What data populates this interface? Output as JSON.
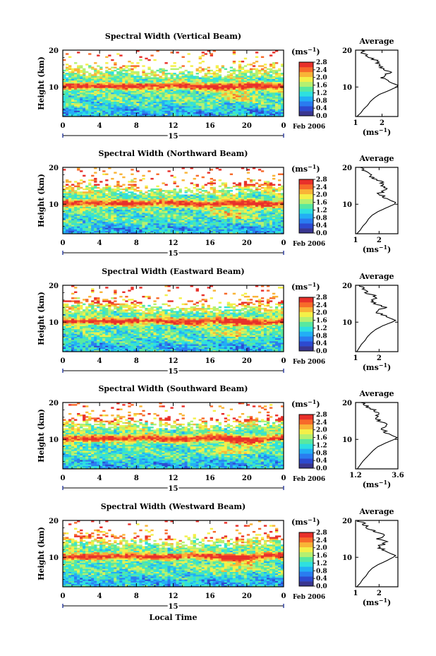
{
  "figure": {
    "x_axis_label": "Local Time",
    "date_day": "15",
    "date_month_year": "Feb 2006",
    "y_axis_label": "Height (km)",
    "colorbar_unit": "(ms",
    "colorbar_unit_sup": "−1",
    "avg_title": "Average",
    "avg_unit": "(ms",
    "avg_unit_sup": "−1",
    "colormap": [
      "#3a3690",
      "#2d4ad0",
      "#2a7cf0",
      "#22aff5",
      "#2ee0e0",
      "#58e8a0",
      "#b6f070",
      "#f4f048",
      "#f9b437",
      "#f76a2a",
      "#e8302a"
    ]
  },
  "chart_data": [
    {
      "type": "heatmap",
      "title": "Spectral Width (Vertical Beam)",
      "x_ticks": [
        "0",
        "4",
        "8",
        "12",
        "16",
        "20",
        "0"
      ],
      "xlim": [
        0,
        24
      ],
      "y_ticks": [
        "10",
        "20"
      ],
      "ylim": [
        2,
        20
      ],
      "colorbar_ticks": [
        "0.0",
        "0.4",
        "0.8",
        "1.2",
        "1.6",
        "2.0",
        "2.4",
        "2.8"
      ],
      "colorbar_range": [
        0,
        2.8
      ],
      "avg_x_ticks": [
        "1",
        "2"
      ],
      "avg_xlim": [
        1.0,
        2.6
      ],
      "avg_profile": [
        [
          2.0,
          1.05
        ],
        [
          3.0,
          1.2
        ],
        [
          4.0,
          1.3
        ],
        [
          5.0,
          1.45
        ],
        [
          6.0,
          1.55
        ],
        [
          7.0,
          1.7
        ],
        [
          8.0,
          1.9
        ],
        [
          9.0,
          2.25
        ],
        [
          10.0,
          2.55
        ],
        [
          10.5,
          2.6
        ],
        [
          11.0,
          2.4
        ],
        [
          12.0,
          2.1
        ],
        [
          13.0,
          2.0
        ],
        [
          14.0,
          2.3
        ],
        [
          15.0,
          2.05
        ],
        [
          16.0,
          1.9
        ],
        [
          17.0,
          1.85
        ],
        [
          18.0,
          1.55
        ],
        [
          19.0,
          1.35
        ],
        [
          20.0,
          1.2
        ]
      ]
    },
    {
      "type": "heatmap",
      "title": "Spectral Width (Northward Beam)",
      "x_ticks": [
        "0",
        "4",
        "8",
        "12",
        "16",
        "20",
        "0"
      ],
      "xlim": [
        0,
        24
      ],
      "y_ticks": [
        "10",
        "20"
      ],
      "ylim": [
        2,
        20
      ],
      "colorbar_ticks": [
        "0.0",
        "0.4",
        "0.8",
        "1.2",
        "1.6",
        "2.0",
        "2.4",
        "2.8"
      ],
      "colorbar_range": [
        0,
        2.8
      ],
      "avg_x_ticks": [
        "1",
        "2"
      ],
      "avg_xlim": [
        1.0,
        2.8
      ],
      "avg_profile": [
        [
          2.0,
          1.05
        ],
        [
          3.0,
          1.2
        ],
        [
          4.0,
          1.3
        ],
        [
          5.0,
          1.45
        ],
        [
          6.0,
          1.55
        ],
        [
          7.0,
          1.7
        ],
        [
          8.0,
          1.95
        ],
        [
          9.0,
          2.3
        ],
        [
          10.0,
          2.65
        ],
        [
          10.5,
          2.7
        ],
        [
          11.0,
          2.5
        ],
        [
          12.0,
          2.2
        ],
        [
          13.0,
          2.0
        ],
        [
          14.0,
          2.35
        ],
        [
          15.0,
          2.05
        ],
        [
          16.0,
          2.15
        ],
        [
          17.0,
          1.8
        ],
        [
          18.0,
          1.6
        ],
        [
          19.0,
          1.4
        ],
        [
          20.0,
          1.2
        ]
      ]
    },
    {
      "type": "heatmap",
      "title": "Spectral Width (Eastward Beam)",
      "x_ticks": [
        "0",
        "4",
        "8",
        "12",
        "16",
        "20",
        "0"
      ],
      "xlim": [
        0,
        24
      ],
      "y_ticks": [
        "10",
        "20"
      ],
      "ylim": [
        2,
        20
      ],
      "colorbar_ticks": [
        "0.0",
        "0.4",
        "0.8",
        "1.2",
        "1.6",
        "2.0",
        "2.4",
        "2.8"
      ],
      "colorbar_range": [
        0,
        2.8
      ],
      "avg_x_ticks": [
        "1",
        "2"
      ],
      "avg_xlim": [
        1.0,
        2.8
      ],
      "avg_profile": [
        [
          2.0,
          1.05
        ],
        [
          3.0,
          1.15
        ],
        [
          4.0,
          1.25
        ],
        [
          5.0,
          1.4
        ],
        [
          6.0,
          1.5
        ],
        [
          7.0,
          1.65
        ],
        [
          8.0,
          1.85
        ],
        [
          9.0,
          2.15
        ],
        [
          10.0,
          2.55
        ],
        [
          10.5,
          2.7
        ],
        [
          11.0,
          2.5
        ],
        [
          12.0,
          2.1
        ],
        [
          13.0,
          1.85
        ],
        [
          14.0,
          2.25
        ],
        [
          15.0,
          1.8
        ],
        [
          16.0,
          1.7
        ],
        [
          17.0,
          1.85
        ],
        [
          18.0,
          1.5
        ],
        [
          19.0,
          1.3
        ],
        [
          20.0,
          1.15
        ]
      ]
    },
    {
      "type": "heatmap",
      "title": "Spectral Width (Southward Beam)",
      "x_ticks": [
        "0",
        "4",
        "8",
        "12",
        "16",
        "20",
        "0"
      ],
      "xlim": [
        0,
        24
      ],
      "y_ticks": [
        "10",
        "20"
      ],
      "ylim": [
        2,
        20
      ],
      "colorbar_ticks": [
        "0.0",
        "0.4",
        "0.8",
        "1.2",
        "1.6",
        "2.0",
        "2.4",
        "2.8"
      ],
      "colorbar_range": [
        0,
        2.8
      ],
      "avg_x_ticks": [
        "1.2",
        "3.6"
      ],
      "avg_xlim": [
        1.2,
        3.6
      ],
      "avg_profile": [
        [
          2.0,
          1.3
        ],
        [
          3.0,
          1.45
        ],
        [
          4.0,
          1.6
        ],
        [
          5.0,
          1.8
        ],
        [
          6.0,
          2.0
        ],
        [
          7.0,
          2.2
        ],
        [
          8.0,
          2.45
        ],
        [
          9.0,
          2.9
        ],
        [
          10.0,
          3.4
        ],
        [
          10.5,
          3.55
        ],
        [
          11.0,
          3.3
        ],
        [
          12.0,
          2.9
        ],
        [
          13.0,
          2.7
        ],
        [
          14.0,
          3.0
        ],
        [
          15.0,
          2.6
        ],
        [
          16.0,
          2.4
        ],
        [
          17.0,
          2.6
        ],
        [
          18.0,
          2.2
        ],
        [
          19.0,
          1.8
        ],
        [
          20.0,
          1.5
        ]
      ]
    },
    {
      "type": "heatmap",
      "title": "Spectral Width (Westward Beam)",
      "x_ticks": [
        "0",
        "4",
        "8",
        "12",
        "16",
        "20",
        "0"
      ],
      "xlim": [
        0,
        24
      ],
      "y_ticks": [
        "10",
        "20"
      ],
      "ylim": [
        2,
        20
      ],
      "colorbar_ticks": [
        "0.0",
        "0.4",
        "0.8",
        "1.2",
        "1.6",
        "2.0",
        "2.4",
        "2.8"
      ],
      "colorbar_range": [
        0,
        2.8
      ],
      "avg_x_ticks": [
        "1",
        "2"
      ],
      "avg_xlim": [
        1.0,
        2.8
      ],
      "avg_profile": [
        [
          2.0,
          1.05
        ],
        [
          3.0,
          1.2
        ],
        [
          4.0,
          1.3
        ],
        [
          5.0,
          1.45
        ],
        [
          6.0,
          1.55
        ],
        [
          7.0,
          1.7
        ],
        [
          8.0,
          1.95
        ],
        [
          9.0,
          2.3
        ],
        [
          10.0,
          2.6
        ],
        [
          10.5,
          2.7
        ],
        [
          11.0,
          2.5
        ],
        [
          12.0,
          2.15
        ],
        [
          13.0,
          1.95
        ],
        [
          14.0,
          2.35
        ],
        [
          15.0,
          1.95
        ],
        [
          16.0,
          2.2
        ],
        [
          17.0,
          1.8
        ],
        [
          18.0,
          1.55
        ],
        [
          19.0,
          1.35
        ],
        [
          20.0,
          1.15
        ]
      ]
    }
  ]
}
